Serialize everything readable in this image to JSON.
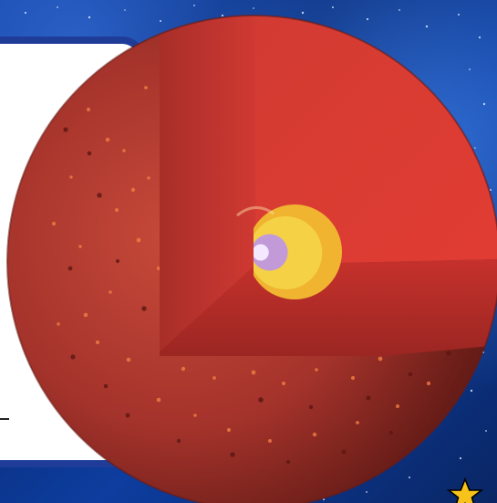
{
  "scene": {
    "subject": "sun-cutaway",
    "colors": {
      "background": "#0b2a6a",
      "panel_border": "#1f3c99",
      "photosphere": "#b7352b",
      "convective_zone": "#df342b",
      "radiative_zone": "#f0b431",
      "core": "#c39ad8",
      "core_highlight": "#f4e8ff",
      "star_badge": "#f7c21a"
    }
  }
}
